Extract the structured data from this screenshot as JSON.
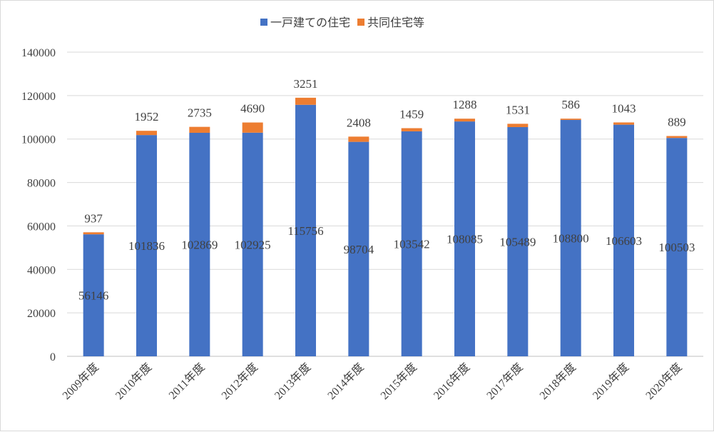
{
  "chart_data": {
    "type": "bar",
    "stacked": true,
    "title": "",
    "xlabel": "",
    "ylabel": "",
    "ylim": [
      0,
      140000
    ],
    "yticks": [
      0,
      20000,
      40000,
      60000,
      80000,
      100000,
      120000,
      140000
    ],
    "grid": true,
    "legend_position": "top-center",
    "categories": [
      "2009年度",
      "2010年度",
      "2011年度",
      "2012年度",
      "2013年度",
      "2014年度",
      "2015年度",
      "2016年度",
      "2017年度",
      "2018年度",
      "2019年度",
      "2020年度"
    ],
    "series": [
      {
        "name": "一戸建ての住宅",
        "color": "#4472C4",
        "values": [
          56146,
          101836,
          102869,
          102925,
          115756,
          98704,
          103542,
          108085,
          105489,
          108800,
          106603,
          100503
        ]
      },
      {
        "name": "共同住宅等",
        "color": "#ED7D31",
        "values": [
          937,
          1952,
          2735,
          4690,
          3251,
          2408,
          1459,
          1288,
          1531,
          586,
          1043,
          889
        ]
      }
    ]
  }
}
